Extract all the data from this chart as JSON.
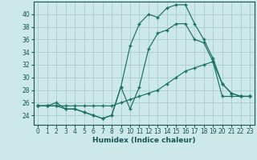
{
  "xlabel": "Humidex (Indice chaleur)",
  "bg_color": "#cce8e8",
  "grid_color": "#aacccc",
  "line_color": "#1a7060",
  "xlim": [
    -0.5,
    23.5
  ],
  "ylim": [
    22.5,
    42.0
  ],
  "xticks": [
    0,
    1,
    2,
    3,
    4,
    5,
    6,
    7,
    8,
    9,
    10,
    11,
    12,
    13,
    14,
    15,
    16,
    17,
    18,
    19,
    20,
    21,
    22,
    23
  ],
  "yticks": [
    24,
    26,
    28,
    30,
    32,
    34,
    36,
    38,
    40
  ],
  "curve1_x": [
    0,
    1,
    2,
    3,
    4,
    5,
    6,
    7,
    8,
    9,
    10,
    11,
    12,
    13,
    14,
    15,
    16,
    17,
    18,
    19,
    20,
    21,
    22,
    23
  ],
  "curve1_y": [
    25.5,
    25.5,
    25.5,
    25.5,
    25.5,
    25.5,
    25.5,
    25.5,
    25.5,
    26.0,
    26.5,
    27.0,
    27.5,
    28.0,
    29.0,
    30.0,
    31.0,
    31.5,
    32.0,
    32.5,
    27.0,
    27.0,
    27.0,
    27.0
  ],
  "curve2_x": [
    0,
    1,
    2,
    3,
    4,
    5,
    6,
    7,
    8,
    9,
    10,
    11,
    12,
    13,
    14,
    15,
    16,
    17,
    18,
    19,
    20,
    21,
    22,
    23
  ],
  "curve2_y": [
    25.5,
    25.5,
    25.5,
    25.0,
    25.0,
    24.5,
    24.0,
    23.5,
    24.0,
    28.5,
    25.0,
    28.5,
    34.5,
    37.0,
    37.5,
    38.5,
    38.5,
    36.0,
    35.5,
    32.5,
    29.0,
    27.5,
    27.0,
    27.0
  ],
  "curve3_x": [
    0,
    1,
    2,
    3,
    4,
    5,
    6,
    7,
    8,
    9,
    10,
    11,
    12,
    13,
    14,
    15,
    16,
    17,
    18,
    19,
    20,
    21,
    22,
    23
  ],
  "curve3_y": [
    25.5,
    25.5,
    26.0,
    25.0,
    25.0,
    24.5,
    24.0,
    23.5,
    24.0,
    28.5,
    35.0,
    38.5,
    40.0,
    39.5,
    41.0,
    41.5,
    41.5,
    38.5,
    36.0,
    33.0,
    29.0,
    27.5,
    27.0,
    27.0
  ],
  "tick_color": "#1a5555",
  "tick_fontsize": 5.5,
  "xlabel_fontsize": 6.5,
  "lw": 0.85,
  "ms": 2.5
}
